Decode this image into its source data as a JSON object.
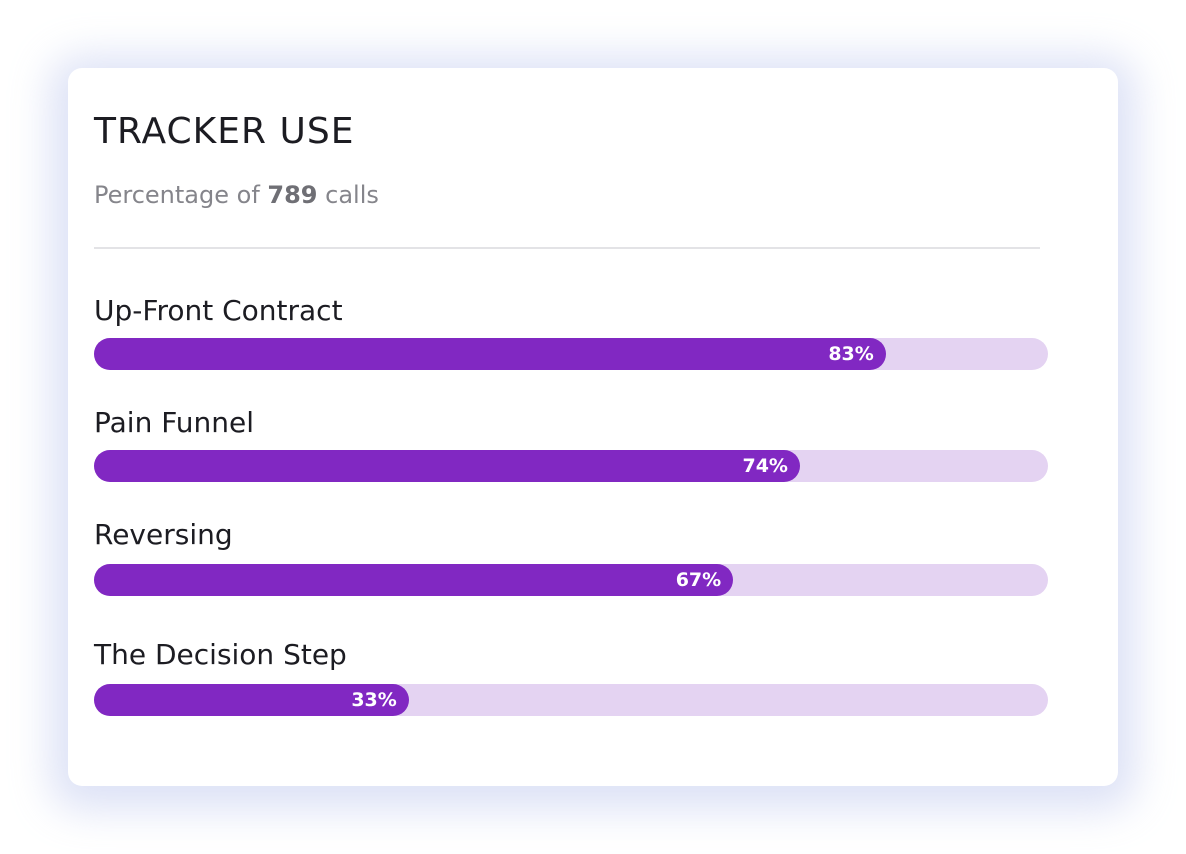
{
  "card": {
    "title": "TRACKER USE",
    "subtitle_prefix": "Percentage of ",
    "subtitle_count": "789",
    "subtitle_suffix": " calls"
  },
  "trackers": [
    {
      "label": "Up-Front Contract",
      "percent_label": "83%",
      "value": 83
    },
    {
      "label": "Pain Funnel",
      "percent_label": "74%",
      "value": 74
    },
    {
      "label": "Reversing",
      "percent_label": "67%",
      "value": 67
    },
    {
      "label": "The Decision Step",
      "percent_label": "33%",
      "value": 33
    }
  ],
  "colors": {
    "fill": "#8128c2",
    "track": "#e4d3f2",
    "title": "#1c1c22",
    "subtitle": "#85858b"
  }
}
